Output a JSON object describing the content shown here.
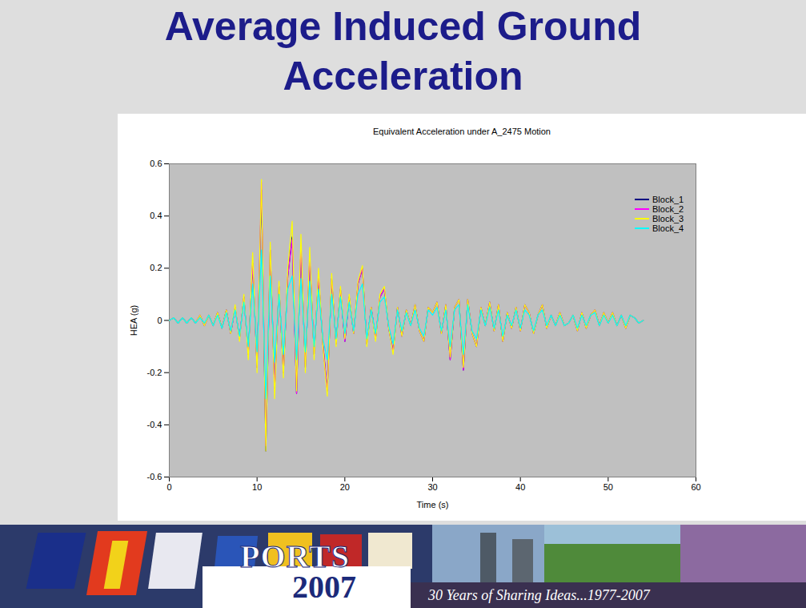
{
  "slide": {
    "heading": "Average Induced Ground Acceleration",
    "footer": {
      "logo": "PORTS",
      "year": "2007",
      "tagline": "30 Years of Sharing Ideas...1977-2007"
    }
  },
  "chart_data": {
    "type": "line",
    "title": "Equivalent Acceleration under A_2475 Motion",
    "x_label": "Time (s)",
    "y_label": "HEA (g)",
    "x": [
      0,
      0.5,
      1,
      1.5,
      2,
      2.5,
      3,
      3.5,
      4,
      4.5,
      5,
      5.5,
      6,
      6.5,
      7,
      7.5,
      8,
      8.5,
      9,
      9.5,
      10,
      10.5,
      11,
      11.5,
      12,
      12.5,
      13,
      13.5,
      14,
      14.5,
      15,
      15.5,
      16,
      16.5,
      17,
      17.5,
      18,
      18.5,
      19,
      19.5,
      20,
      20.5,
      21,
      21.5,
      22,
      22.5,
      23,
      23.5,
      24,
      24.5,
      25,
      25.5,
      26,
      26.5,
      27,
      27.5,
      28,
      28.5,
      29,
      29.5,
      30,
      30.5,
      31,
      31.5,
      32,
      32.5,
      33,
      33.5,
      34,
      34.5,
      35,
      35.5,
      36,
      36.5,
      37,
      37.5,
      38,
      38.5,
      39,
      39.5,
      40,
      40.5,
      41,
      41.5,
      42,
      42.5,
      43,
      43.5,
      44,
      44.5,
      45,
      45.5,
      46,
      46.5,
      47,
      47.5,
      48,
      48.5,
      49,
      49.5,
      50,
      50.5,
      51,
      51.5,
      52,
      52.5,
      53,
      53.5,
      54
    ],
    "series": [
      {
        "name": "Block_1",
        "color": "#000080",
        "values": [
          0,
          0.01,
          -0.01,
          0.01,
          -0.01,
          0.01,
          -0.01,
          0.02,
          -0.02,
          0.02,
          -0.02,
          0.03,
          -0.03,
          0.04,
          -0.05,
          0.05,
          -0.07,
          0.09,
          -0.13,
          0.22,
          -0.18,
          0.5,
          -0.5,
          0.27,
          -0.26,
          0.13,
          -0.2,
          0.17,
          0.32,
          -0.28,
          0.28,
          -0.18,
          0.24,
          -0.13,
          0.17,
          -0.09,
          -0.27,
          0.16,
          -0.09,
          0.12,
          -0.08,
          0.09,
          -0.05,
          0.14,
          0.2,
          -0.09,
          0.05,
          -0.07,
          0.09,
          0.12,
          -0.03,
          -0.12,
          0.05,
          -0.06,
          0.04,
          -0.02,
          0.06,
          -0.04,
          -0.08,
          0.05,
          0.03,
          0.07,
          -0.05,
          0.06,
          -0.15,
          0.05,
          0.08,
          -0.19,
          0.08,
          -0.05,
          -0.1,
          0.05,
          -0.02,
          0.07,
          -0.04,
          0.06,
          -0.08,
          0.03,
          -0.03,
          0.05,
          -0.04,
          0.06,
          0.03,
          -0.05,
          0.02,
          0.06,
          -0.03,
          0.02,
          -0.02,
          0.03,
          -0.02,
          -0.01,
          0.02,
          -0.04,
          0.03,
          -0.03,
          0.02,
          0.04,
          -0.02,
          0.03,
          -0.01,
          0.03,
          -0.02,
          0.02,
          -0.03,
          0.02,
          0.01,
          -0.01,
          0
        ]
      },
      {
        "name": "Block_2",
        "color": "#ff00ff",
        "values": [
          0,
          0.01,
          -0.01,
          0.01,
          -0.01,
          0.01,
          -0.01,
          0.02,
          -0.02,
          0.02,
          -0.02,
          0.03,
          -0.03,
          0.04,
          -0.05,
          0.05,
          -0.07,
          0.09,
          -0.13,
          0.22,
          -0.18,
          0.53,
          -0.48,
          0.27,
          -0.26,
          0.13,
          -0.2,
          0.17,
          0.31,
          -0.28,
          0.28,
          -0.18,
          0.24,
          -0.13,
          0.17,
          -0.09,
          -0.27,
          0.16,
          -0.09,
          0.12,
          -0.08,
          0.09,
          -0.05,
          0.14,
          0.2,
          -0.09,
          0.05,
          -0.07,
          0.09,
          0.12,
          -0.03,
          -0.12,
          0.05,
          -0.06,
          0.04,
          -0.02,
          0.06,
          -0.04,
          -0.08,
          0.05,
          0.03,
          0.07,
          -0.05,
          0.06,
          -0.15,
          0.05,
          0.08,
          -0.19,
          0.08,
          -0.05,
          -0.1,
          0.05,
          -0.02,
          0.07,
          -0.04,
          0.06,
          -0.08,
          0.03,
          -0.03,
          0.05,
          -0.04,
          0.06,
          0.03,
          -0.05,
          0.02,
          0.06,
          -0.03,
          0.02,
          -0.02,
          0.03,
          -0.02,
          -0.01,
          0.02,
          -0.04,
          0.03,
          -0.03,
          0.02,
          0.04,
          -0.02,
          0.03,
          -0.01,
          0.03,
          -0.02,
          0.02,
          -0.03,
          0.02,
          0.01,
          -0.01,
          0
        ]
      },
      {
        "name": "Block_3",
        "color": "#ffff00",
        "values": [
          0,
          0.01,
          -0.01,
          0.01,
          -0.01,
          0.01,
          -0.01,
          0.02,
          -0.02,
          0.02,
          -0.02,
          0.03,
          -0.03,
          0.04,
          -0.05,
          0.06,
          -0.08,
          0.1,
          -0.15,
          0.26,
          -0.2,
          0.54,
          -0.5,
          0.3,
          -0.3,
          0.15,
          -0.22,
          0.2,
          0.38,
          -0.27,
          0.33,
          -0.2,
          0.28,
          -0.15,
          0.2,
          -0.1,
          -0.29,
          0.18,
          -0.1,
          0.13,
          -0.07,
          0.1,
          -0.05,
          0.15,
          0.21,
          -0.1,
          0.05,
          -0.08,
          0.1,
          0.13,
          -0.03,
          -0.13,
          0.05,
          -0.06,
          0.04,
          -0.02,
          0.06,
          -0.04,
          -0.08,
          0.05,
          0.03,
          0.07,
          -0.05,
          0.06,
          -0.14,
          0.05,
          0.08,
          -0.18,
          0.08,
          -0.05,
          -0.1,
          0.05,
          -0.02,
          0.07,
          -0.04,
          0.06,
          -0.08,
          0.03,
          -0.03,
          0.05,
          -0.04,
          0.06,
          0.03,
          -0.05,
          0.02,
          0.06,
          -0.03,
          0.02,
          -0.02,
          0.03,
          -0.02,
          -0.01,
          0.02,
          -0.04,
          0.03,
          -0.03,
          0.02,
          0.04,
          -0.02,
          0.03,
          -0.01,
          0.03,
          -0.02,
          0.02,
          -0.03,
          0.02,
          0.01,
          -0.01,
          0
        ]
      },
      {
        "name": "Block_4",
        "color": "#00ffff",
        "values": [
          0,
          0.01,
          -0.01,
          0.01,
          -0.01,
          0.01,
          -0.01,
          0.01,
          -0.01,
          0.02,
          -0.02,
          0.02,
          -0.03,
          0.03,
          -0.04,
          0.04,
          -0.06,
          0.07,
          -0.1,
          0.14,
          -0.12,
          0.27,
          -0.3,
          0.17,
          -0.16,
          0.1,
          -0.13,
          0.12,
          0.17,
          -0.15,
          0.16,
          -0.12,
          0.15,
          -0.1,
          0.12,
          -0.07,
          -0.15,
          0.1,
          -0.07,
          0.09,
          -0.05,
          0.07,
          -0.04,
          0.1,
          0.14,
          -0.07,
          0.04,
          -0.05,
          0.07,
          0.09,
          -0.02,
          -0.09,
          0.04,
          -0.04,
          0.03,
          -0.02,
          0.04,
          -0.03,
          -0.06,
          0.04,
          0.02,
          0.05,
          -0.04,
          0.04,
          -0.1,
          0.04,
          0.06,
          -0.13,
          0.06,
          -0.04,
          -0.07,
          0.04,
          -0.02,
          0.05,
          -0.03,
          0.04,
          -0.06,
          0.02,
          -0.02,
          0.04,
          -0.03,
          0.04,
          0.02,
          -0.04,
          0.02,
          0.04,
          -0.02,
          0.02,
          -0.02,
          0.02,
          -0.02,
          -0.01,
          0.02,
          -0.03,
          0.02,
          -0.02,
          0.02,
          0.03,
          -0.02,
          0.02,
          -0.01,
          0.02,
          -0.02,
          0.02,
          -0.02,
          0.02,
          0.01,
          -0.01,
          0
        ]
      }
    ],
    "xlim": [
      0,
      60
    ],
    "xticks": [
      0,
      10,
      20,
      30,
      40,
      50,
      60
    ],
    "ylim": [
      -0.6,
      0.6
    ],
    "yticks": [
      -0.6,
      -0.4,
      -0.2,
      0,
      0.2,
      0.4,
      0.6
    ],
    "grid": false,
    "legend": "upper right"
  }
}
